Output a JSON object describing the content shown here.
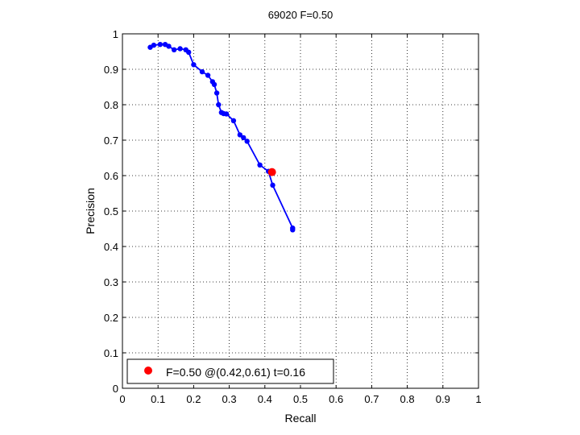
{
  "chart_data": {
    "type": "line",
    "title": "69020 F=0.50",
    "xlabel": "Recall",
    "ylabel": "Precision",
    "xlim": [
      0,
      1
    ],
    "ylim": [
      0,
      1
    ],
    "xticks": [
      "0",
      "0.1",
      "0.2",
      "0.3",
      "0.4",
      "0.5",
      "0.6",
      "0.7",
      "0.8",
      "0.9",
      "1"
    ],
    "yticks": [
      "0",
      "0.1",
      "0.2",
      "0.3",
      "0.4",
      "0.5",
      "0.6",
      "0.7",
      "0.8",
      "0.9",
      "1"
    ],
    "grid": "dotted",
    "legend_position": "bottom-left",
    "series": [
      {
        "color": "#0000ff",
        "x": [
          0.078,
          0.088,
          0.106,
          0.12,
          0.13,
          0.145,
          0.162,
          0.178,
          0.186,
          0.2,
          0.224,
          0.24,
          0.253,
          0.258,
          0.265,
          0.27,
          0.278,
          0.284,
          0.292,
          0.312,
          0.33,
          0.34,
          0.35,
          0.386,
          0.41,
          0.422,
          0.478,
          0.478
        ],
        "y": [
          0.962,
          0.968,
          0.97,
          0.97,
          0.965,
          0.955,
          0.958,
          0.955,
          0.948,
          0.913,
          0.893,
          0.883,
          0.865,
          0.857,
          0.833,
          0.8,
          0.778,
          0.775,
          0.774,
          0.755,
          0.715,
          0.707,
          0.697,
          0.63,
          0.612,
          0.573,
          0.452,
          0.447
        ]
      }
    ],
    "highlight": {
      "color": "#ff0000",
      "x": 0.42,
      "y": 0.61,
      "label": "F=0.50 @(0.42,0.61) t=0.16"
    }
  }
}
